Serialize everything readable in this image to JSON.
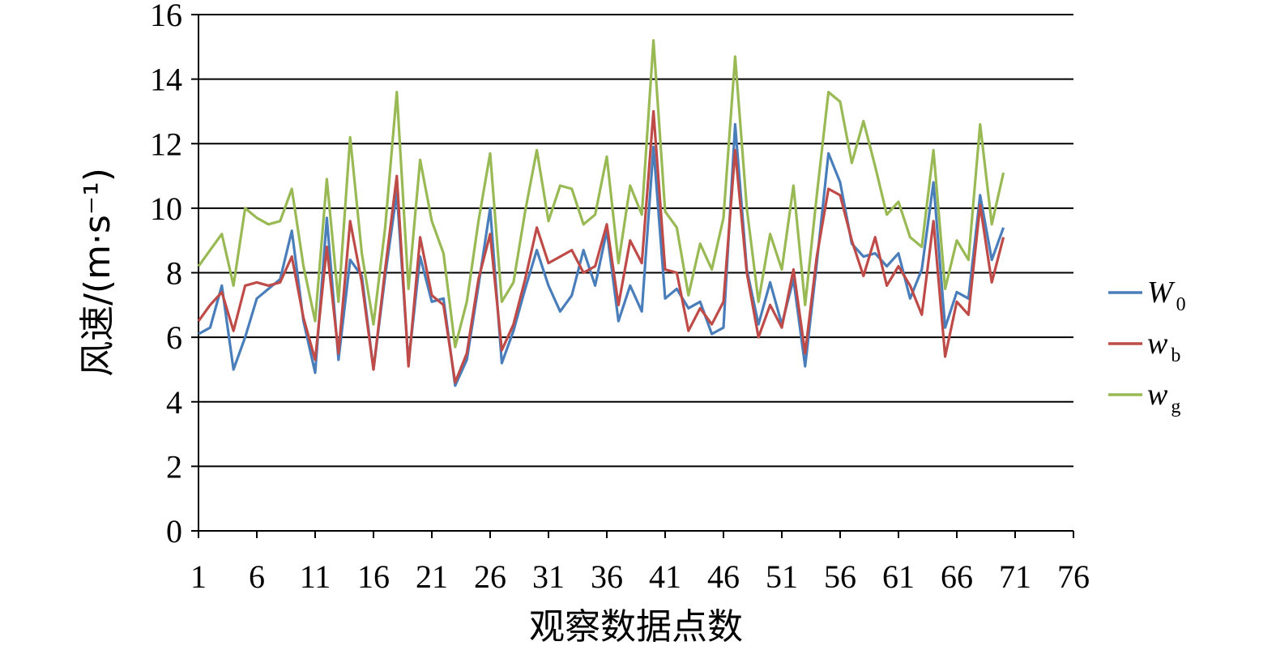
{
  "chart_data": {
    "type": "line",
    "xlabel": "观察数据点数",
    "ylabel": "风速/(m·s⁻¹)",
    "xlim": [
      1,
      76
    ],
    "ylim": [
      0,
      16
    ],
    "x_ticks": [
      1,
      6,
      11,
      16,
      21,
      26,
      31,
      36,
      41,
      46,
      51,
      56,
      61,
      66,
      71,
      76
    ],
    "y_ticks": [
      0,
      2,
      4,
      6,
      8,
      10,
      12,
      14,
      16
    ],
    "grid": "horizontal",
    "legend_position": "right",
    "x": [
      1,
      2,
      3,
      4,
      5,
      6,
      7,
      8,
      9,
      10,
      11,
      12,
      13,
      14,
      15,
      16,
      17,
      18,
      19,
      20,
      21,
      22,
      23,
      24,
      25,
      26,
      27,
      28,
      29,
      30,
      31,
      32,
      33,
      34,
      35,
      36,
      37,
      38,
      39,
      40,
      41,
      42,
      43,
      44,
      45,
      46,
      47,
      48,
      49,
      50,
      51,
      52,
      53,
      54,
      55,
      56,
      57,
      58,
      59,
      60,
      61,
      62,
      63,
      64,
      65,
      66,
      67,
      68,
      69,
      70
    ],
    "series": [
      {
        "name": "W",
        "subscript": "0",
        "color": "#4a7ebb",
        "values": [
          6.1,
          6.3,
          7.6,
          5.0,
          6.0,
          7.2,
          7.5,
          7.8,
          9.3,
          6.5,
          4.9,
          9.7,
          5.3,
          8.4,
          7.9,
          5.0,
          7.9,
          10.5,
          5.2,
          8.5,
          7.1,
          7.2,
          4.5,
          5.3,
          7.6,
          10.0,
          5.2,
          6.2,
          7.5,
          8.7,
          7.6,
          6.8,
          7.3,
          8.7,
          7.6,
          9.3,
          6.5,
          7.6,
          6.8,
          11.9,
          7.2,
          7.5,
          6.9,
          7.1,
          6.1,
          6.3,
          12.6,
          8.1,
          6.4,
          7.7,
          6.4,
          7.8,
          5.1,
          8.3,
          11.7,
          10.8,
          8.9,
          8.5,
          8.6,
          8.2,
          8.6,
          7.2,
          8.1,
          10.8,
          6.3,
          7.4,
          7.2,
          10.4,
          8.4,
          9.4
        ]
      },
      {
        "name": "w",
        "subscript": "b",
        "color": "#be4b48",
        "values": [
          6.5,
          7.0,
          7.4,
          6.2,
          7.6,
          7.7,
          7.6,
          7.7,
          8.5,
          6.6,
          5.3,
          8.8,
          5.5,
          9.6,
          7.7,
          5.0,
          8.1,
          11.0,
          5.1,
          9.1,
          7.3,
          7.0,
          4.6,
          5.5,
          7.8,
          9.2,
          5.6,
          6.4,
          7.8,
          9.4,
          8.3,
          8.5,
          8.7,
          8.0,
          8.2,
          9.5,
          7.0,
          9.0,
          8.3,
          13.0,
          8.1,
          8.0,
          6.2,
          6.9,
          6.4,
          7.1,
          11.8,
          8.0,
          6.0,
          7.0,
          6.3,
          8.1,
          5.5,
          8.5,
          10.6,
          10.4,
          9.0,
          7.9,
          9.1,
          7.6,
          8.2,
          7.6,
          6.7,
          9.6,
          5.4,
          7.1,
          6.7,
          10.1,
          7.7,
          9.1
        ]
      },
      {
        "name": "w",
        "subscript": "g",
        "color": "#98b954",
        "values": [
          8.2,
          8.7,
          9.2,
          7.6,
          10.0,
          9.7,
          9.5,
          9.6,
          10.6,
          8.2,
          6.5,
          10.9,
          7.1,
          12.2,
          8.6,
          6.4,
          9.4,
          13.6,
          7.5,
          11.5,
          9.6,
          8.6,
          5.7,
          7.1,
          9.6,
          11.7,
          7.1,
          7.7,
          9.9,
          11.8,
          9.6,
          10.7,
          10.6,
          9.5,
          9.8,
          11.6,
          8.3,
          10.7,
          9.8,
          15.2,
          9.9,
          9.4,
          7.3,
          8.9,
          8.1,
          9.7,
          14.7,
          10.0,
          7.1,
          9.2,
          8.1,
          10.7,
          7.0,
          10.4,
          13.6,
          13.3,
          11.4,
          12.7,
          11.3,
          9.8,
          10.2,
          9.1,
          8.8,
          11.8,
          7.5,
          9.0,
          8.4,
          12.6,
          9.5,
          11.1
        ]
      }
    ]
  }
}
